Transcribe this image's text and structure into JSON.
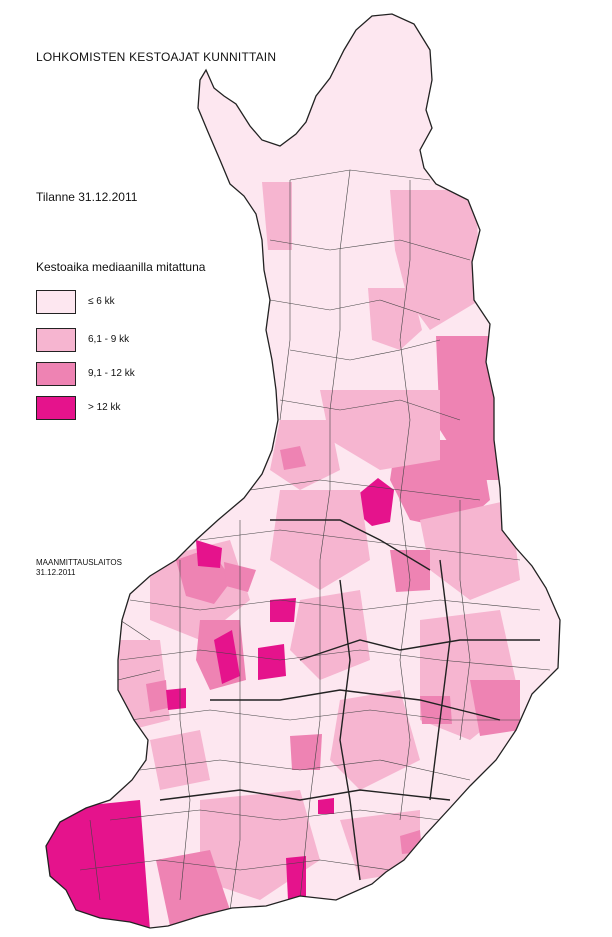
{
  "title": "LOHKOMISTEN KESTOAJAT KUNNITTAIN",
  "status": "Tilanne 31.12.2011",
  "legend": {
    "title": "Kestoaika mediaanilla mitattuna",
    "items": [
      {
        "label": "≤ 6 kk",
        "color": "#fde7f0"
      },
      {
        "label": "6,1 - 9 kk",
        "color": "#f6b5d0"
      },
      {
        "label": "9,1 - 12 kk",
        "color": "#ee83b3"
      },
      {
        "label": "> 12 kk",
        "color": "#e5138c"
      }
    ]
  },
  "source": {
    "org": "MAANMITTAUSLAITOS",
    "date": "31.12.2011"
  },
  "map": {
    "country": "Finland",
    "border_color": "#222222"
  }
}
